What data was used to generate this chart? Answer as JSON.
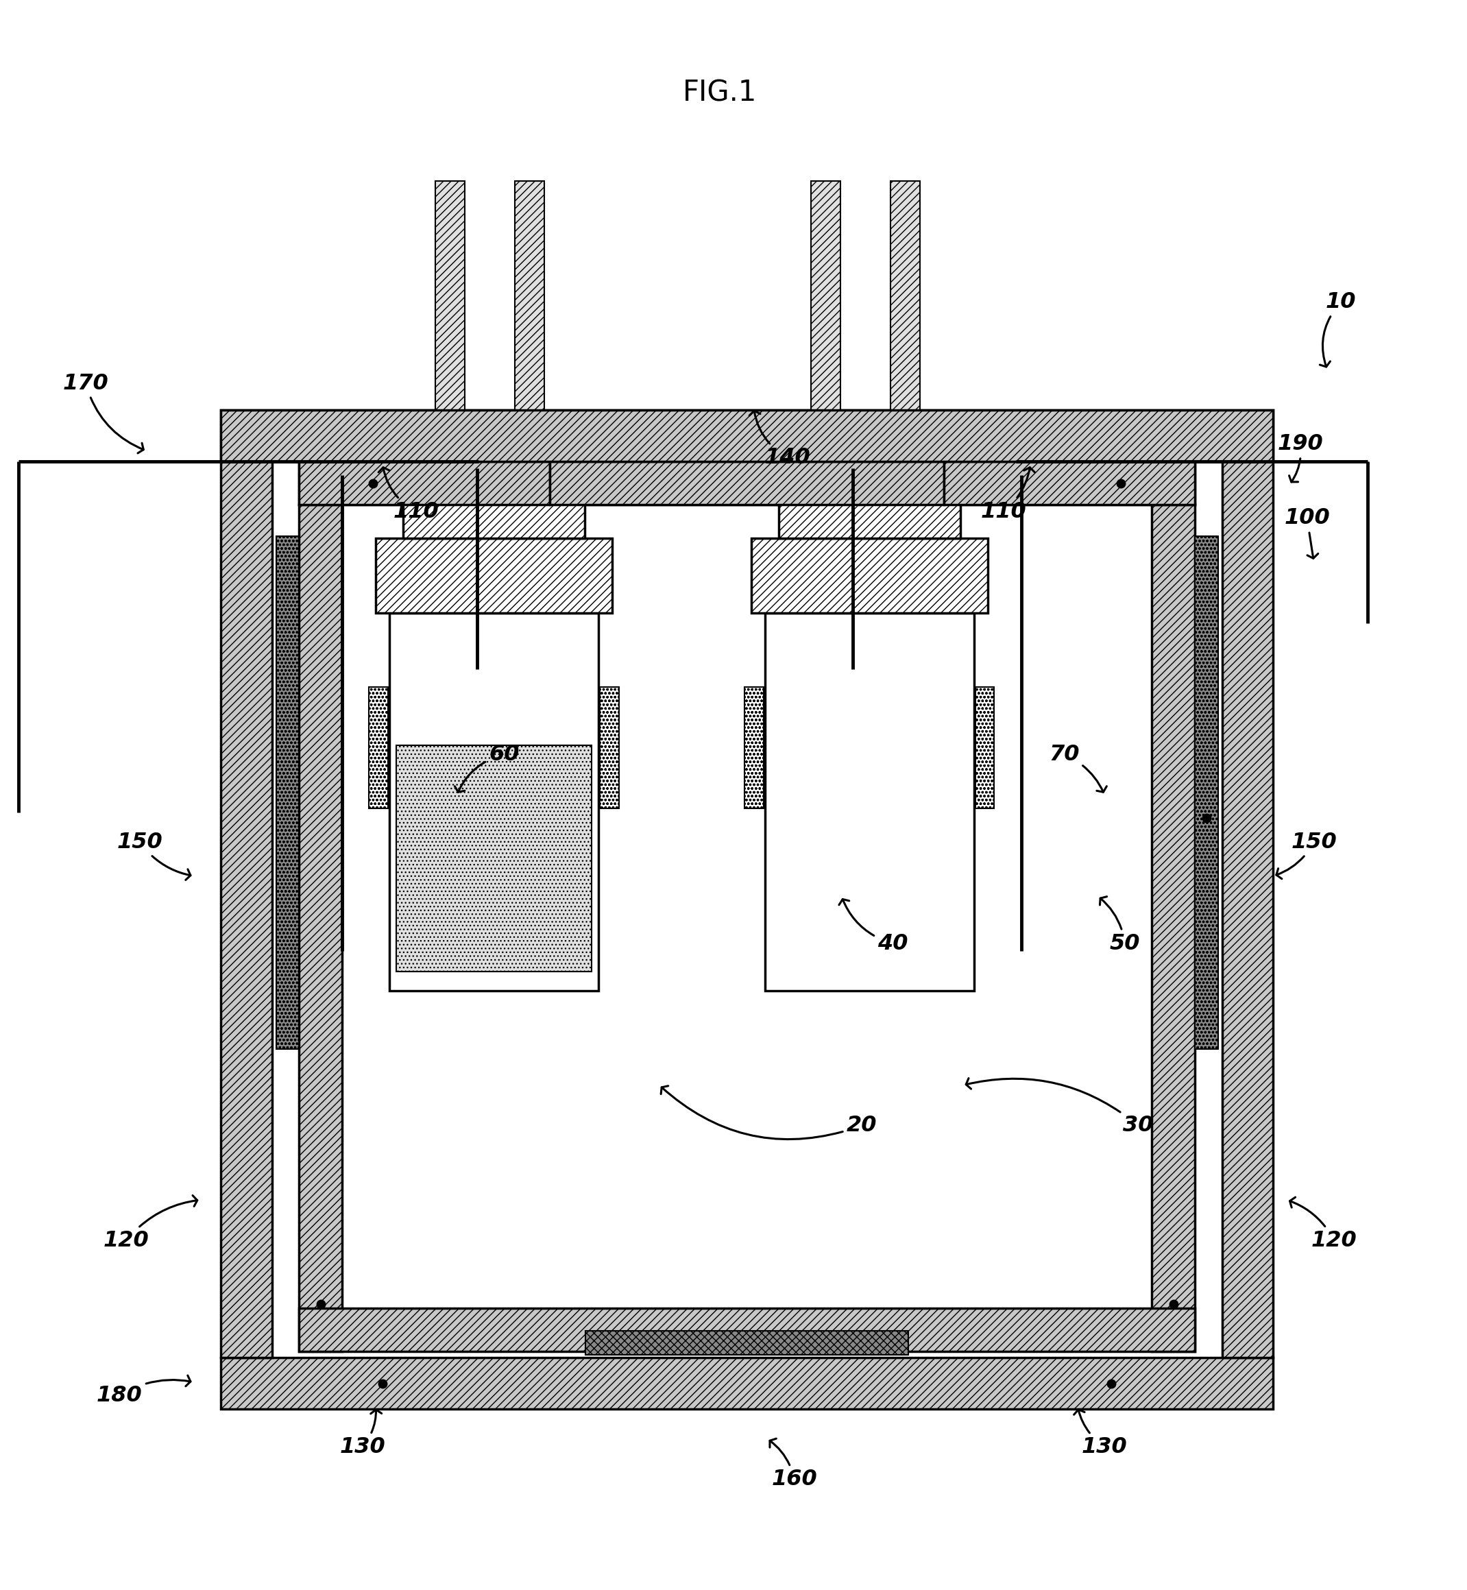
{
  "title": "FIG.1",
  "bg_color": "#ffffff",
  "gray_hatch": "#c8c8c8",
  "dark_gray": "#888888",
  "light_gray": "#e0e0e0",
  "lw_main": 2.5,
  "lw_thin": 1.5,
  "lw_wire": 3.5,
  "label_fs": 23,
  "title_fs": 30
}
